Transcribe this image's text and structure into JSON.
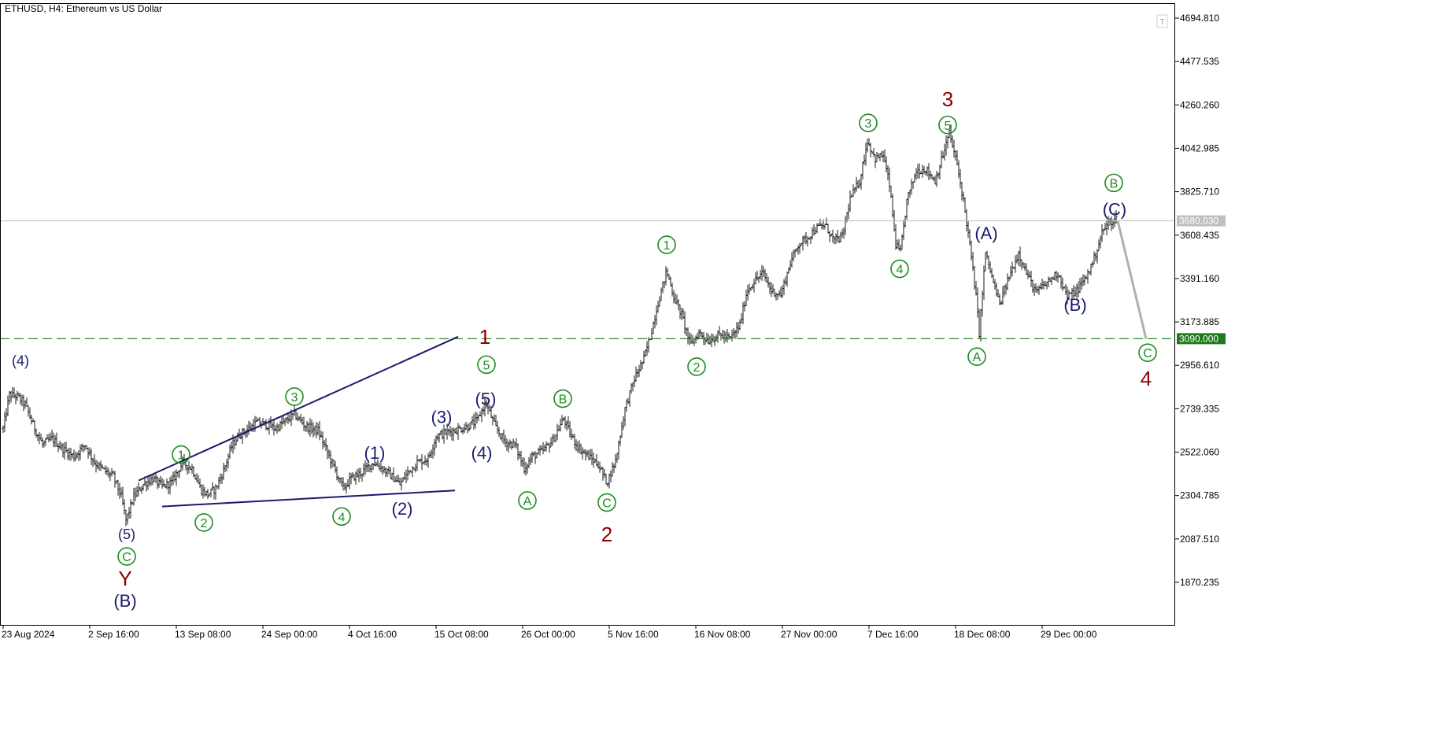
{
  "header": {
    "title": "ETHUSD, H4:  Ethereum vs US Dollar"
  },
  "chart_data": {
    "type": "candlestick",
    "symbol": "ETHUSD",
    "timeframe": "H4",
    "title": "ETHUSD, H4:  Ethereum vs US Dollar",
    "y_axis_ticks": [
      "4694.810",
      "4477.535",
      "4260.260",
      "4042.985",
      "3825.710",
      "3608.435",
      "3391.160",
      "3173.885",
      "2956.610",
      "2739.335",
      "2522.060",
      "2304.785",
      "2087.510",
      "1870.235"
    ],
    "x_axis_ticks": [
      "23 Aug 2024",
      "2 Sep 16:00",
      "13 Sep 08:00",
      "24 Sep 00:00",
      "4 Oct 16:00",
      "15 Oct 08:00",
      "26 Oct 00:00",
      "5 Nov 16:00",
      "16 Nov 08:00",
      "27 Nov 00:00",
      "7 Dec 16:00",
      "18 Dec 08:00",
      "29 Dec 00:00"
    ],
    "ylim": [
      1700,
      4790
    ],
    "current_price": {
      "label": "3680.030",
      "value": 3680.03,
      "color": "#c0c0c0"
    },
    "target_level": {
      "label": "3090.000",
      "value": 3090.0,
      "color": "#2e8b2e",
      "style": "dashed"
    },
    "price_path": [
      [
        0,
        2640
      ],
      [
        8,
        2810
      ],
      [
        18,
        2800
      ],
      [
        28,
        2760
      ],
      [
        40,
        2640
      ],
      [
        50,
        2560
      ],
      [
        62,
        2590
      ],
      [
        75,
        2540
      ],
      [
        90,
        2500
      ],
      [
        104,
        2560
      ],
      [
        116,
        2470
      ],
      [
        128,
        2430
      ],
      [
        140,
        2400
      ],
      [
        150,
        2300
      ],
      [
        156,
        2180
      ],
      [
        166,
        2300
      ],
      [
        178,
        2360
      ],
      [
        190,
        2390
      ],
      [
        202,
        2350
      ],
      [
        214,
        2370
      ],
      [
        228,
        2470
      ],
      [
        240,
        2440
      ],
      [
        252,
        2330
      ],
      [
        260,
        2310
      ],
      [
        270,
        2340
      ],
      [
        280,
        2430
      ],
      [
        290,
        2550
      ],
      [
        300,
        2610
      ],
      [
        312,
        2640
      ],
      [
        322,
        2670
      ],
      [
        334,
        2660
      ],
      [
        346,
        2640
      ],
      [
        356,
        2670
      ],
      [
        370,
        2710
      ],
      [
        385,
        2650
      ],
      [
        400,
        2630
      ],
      [
        412,
        2520
      ],
      [
        422,
        2430
      ],
      [
        432,
        2340
      ],
      [
        442,
        2390
      ],
      [
        455,
        2420
      ],
      [
        470,
        2470
      ],
      [
        482,
        2440
      ],
      [
        494,
        2400
      ],
      [
        504,
        2360
      ],
      [
        514,
        2420
      ],
      [
        526,
        2470
      ],
      [
        540,
        2490
      ],
      [
        550,
        2600
      ],
      [
        562,
        2620
      ],
      [
        574,
        2630
      ],
      [
        590,
        2650
      ],
      [
        602,
        2680
      ],
      [
        613,
        2770
      ],
      [
        625,
        2650
      ],
      [
        638,
        2570
      ],
      [
        650,
        2560
      ],
      [
        662,
        2440
      ],
      [
        672,
        2500
      ],
      [
        686,
        2530
      ],
      [
        698,
        2580
      ],
      [
        712,
        2690
      ],
      [
        722,
        2600
      ],
      [
        732,
        2540
      ],
      [
        744,
        2500
      ],
      [
        756,
        2460
      ],
      [
        767,
        2370
      ],
      [
        778,
        2480
      ],
      [
        790,
        2740
      ],
      [
        802,
        2890
      ],
      [
        814,
        2990
      ],
      [
        822,
        3100
      ],
      [
        832,
        3270
      ],
      [
        843,
        3430
      ],
      [
        852,
        3300
      ],
      [
        862,
        3210
      ],
      [
        873,
        3060
      ],
      [
        884,
        3120
      ],
      [
        896,
        3080
      ],
      [
        910,
        3110
      ],
      [
        924,
        3090
      ],
      [
        936,
        3160
      ],
      [
        945,
        3330
      ],
      [
        955,
        3380
      ],
      [
        965,
        3420
      ],
      [
        976,
        3330
      ],
      [
        988,
        3310
      ],
      [
        1000,
        3470
      ],
      [
        1010,
        3560
      ],
      [
        1020,
        3590
      ],
      [
        1032,
        3640
      ],
      [
        1044,
        3660
      ],
      [
        1056,
        3580
      ],
      [
        1066,
        3600
      ],
      [
        1076,
        3790
      ],
      [
        1088,
        3880
      ],
      [
        1098,
        4080
      ],
      [
        1108,
        3990
      ],
      [
        1118,
        4010
      ],
      [
        1126,
        3860
      ],
      [
        1134,
        3560
      ],
      [
        1140,
        3520
      ],
      [
        1148,
        3780
      ],
      [
        1160,
        3930
      ],
      [
        1172,
        3940
      ],
      [
        1184,
        3880
      ],
      [
        1194,
        4010
      ],
      [
        1202,
        4120
      ],
      [
        1212,
        3960
      ],
      [
        1220,
        3780
      ],
      [
        1228,
        3560
      ],
      [
        1236,
        3300
      ],
      [
        1240,
        3120
      ],
      [
        1248,
        3520
      ],
      [
        1256,
        3400
      ],
      [
        1266,
        3260
      ],
      [
        1276,
        3380
      ],
      [
        1290,
        3520
      ],
      [
        1300,
        3420
      ],
      [
        1312,
        3320
      ],
      [
        1326,
        3370
      ],
      [
        1340,
        3420
      ],
      [
        1352,
        3300
      ],
      [
        1364,
        3330
      ],
      [
        1376,
        3400
      ],
      [
        1386,
        3490
      ],
      [
        1396,
        3620
      ],
      [
        1404,
        3670
      ],
      [
        1414,
        3690
      ]
    ],
    "price_noise": 38,
    "projection_line": {
      "from": [
        1416,
        3680.03
      ],
      "to": [
        1452,
        3090.0
      ],
      "color": "#b0b0b0"
    },
    "trendlines": [
      {
        "from": [
          172,
          2380
        ],
        "to": [
          578,
          3100
        ],
        "color": "#1a1a6e"
      },
      {
        "from": [
          202,
          2250
        ],
        "to": [
          574,
          2330
        ],
        "color": "#1a1a6e"
      }
    ],
    "annotations": [
      {
        "text": "(4)",
        "bar": 22,
        "price": 2980,
        "style": "navy"
      },
      {
        "text": "(5)",
        "bar": 157,
        "price": 2110,
        "style": "navy"
      },
      {
        "text": "C",
        "bar": 157,
        "price": 2000,
        "style": "green-circle"
      },
      {
        "text": "Y",
        "bar": 155,
        "price": 1890,
        "style": "red"
      },
      {
        "text": "(B)",
        "bar": 155,
        "price": 1780,
        "style": "navy-large"
      },
      {
        "text": "1",
        "bar": 226,
        "price": 2510,
        "style": "green-circle"
      },
      {
        "text": "2",
        "bar": 255,
        "price": 2170,
        "style": "green-circle"
      },
      {
        "text": "3",
        "bar": 370,
        "price": 2800,
        "style": "green-circle"
      },
      {
        "text": "4",
        "bar": 430,
        "price": 2200,
        "style": "green-circle"
      },
      {
        "text": "(1)",
        "bar": 472,
        "price": 2520,
        "style": "navy-large"
      },
      {
        "text": "(2)",
        "bar": 507,
        "price": 2240,
        "style": "navy-large"
      },
      {
        "text": "(3)",
        "bar": 557,
        "price": 2700,
        "style": "navy-large"
      },
      {
        "text": "(4)",
        "bar": 608,
        "price": 2520,
        "style": "navy-large"
      },
      {
        "text": "(5)",
        "bar": 613,
        "price": 2790,
        "style": "navy-large"
      },
      {
        "text": "5",
        "bar": 614,
        "price": 2960,
        "style": "green-circle"
      },
      {
        "text": "1",
        "bar": 612,
        "price": 3100,
        "style": "red"
      },
      {
        "text": "A",
        "bar": 666,
        "price": 2280,
        "style": "green-circle"
      },
      {
        "text": "B",
        "bar": 711,
        "price": 2790,
        "style": "green-circle"
      },
      {
        "text": "C",
        "bar": 767,
        "price": 2270,
        "style": "green-circle"
      },
      {
        "text": "2",
        "bar": 767,
        "price": 2110,
        "style": "red"
      },
      {
        "text": "1",
        "bar": 843,
        "price": 3560,
        "style": "green-circle"
      },
      {
        "text": "2",
        "bar": 881,
        "price": 2950,
        "style": "green-circle"
      },
      {
        "text": "3",
        "bar": 1099,
        "price": 4170,
        "style": "green-circle"
      },
      {
        "text": "4",
        "bar": 1139,
        "price": 3440,
        "style": "green-circle"
      },
      {
        "text": "3",
        "bar": 1200,
        "price": 4290,
        "style": "red"
      },
      {
        "text": "5",
        "bar": 1200,
        "price": 4160,
        "style": "green-circle"
      },
      {
        "text": "(A)",
        "bar": 1249,
        "price": 3620,
        "style": "navy-large"
      },
      {
        "text": "A",
        "bar": 1237,
        "price": 3000,
        "style": "green-circle"
      },
      {
        "text": "(B)",
        "bar": 1362,
        "price": 3260,
        "style": "navy-large"
      },
      {
        "text": "B",
        "bar": 1411,
        "price": 3870,
        "style": "green-circle"
      },
      {
        "text": "(C)",
        "bar": 1412,
        "price": 3740,
        "style": "navy-large"
      },
      {
        "text": "C",
        "bar": 1454,
        "price": 3020,
        "style": "green-circle"
      },
      {
        "text": "4",
        "bar": 1452,
        "price": 2890,
        "style": "red"
      }
    ],
    "grid": false,
    "colors": {
      "candle": "#1a1a1a",
      "axis": "#000000",
      "navy": "#1a1a6e",
      "green": "#1e8a1e",
      "red": "#8b0000"
    }
  }
}
